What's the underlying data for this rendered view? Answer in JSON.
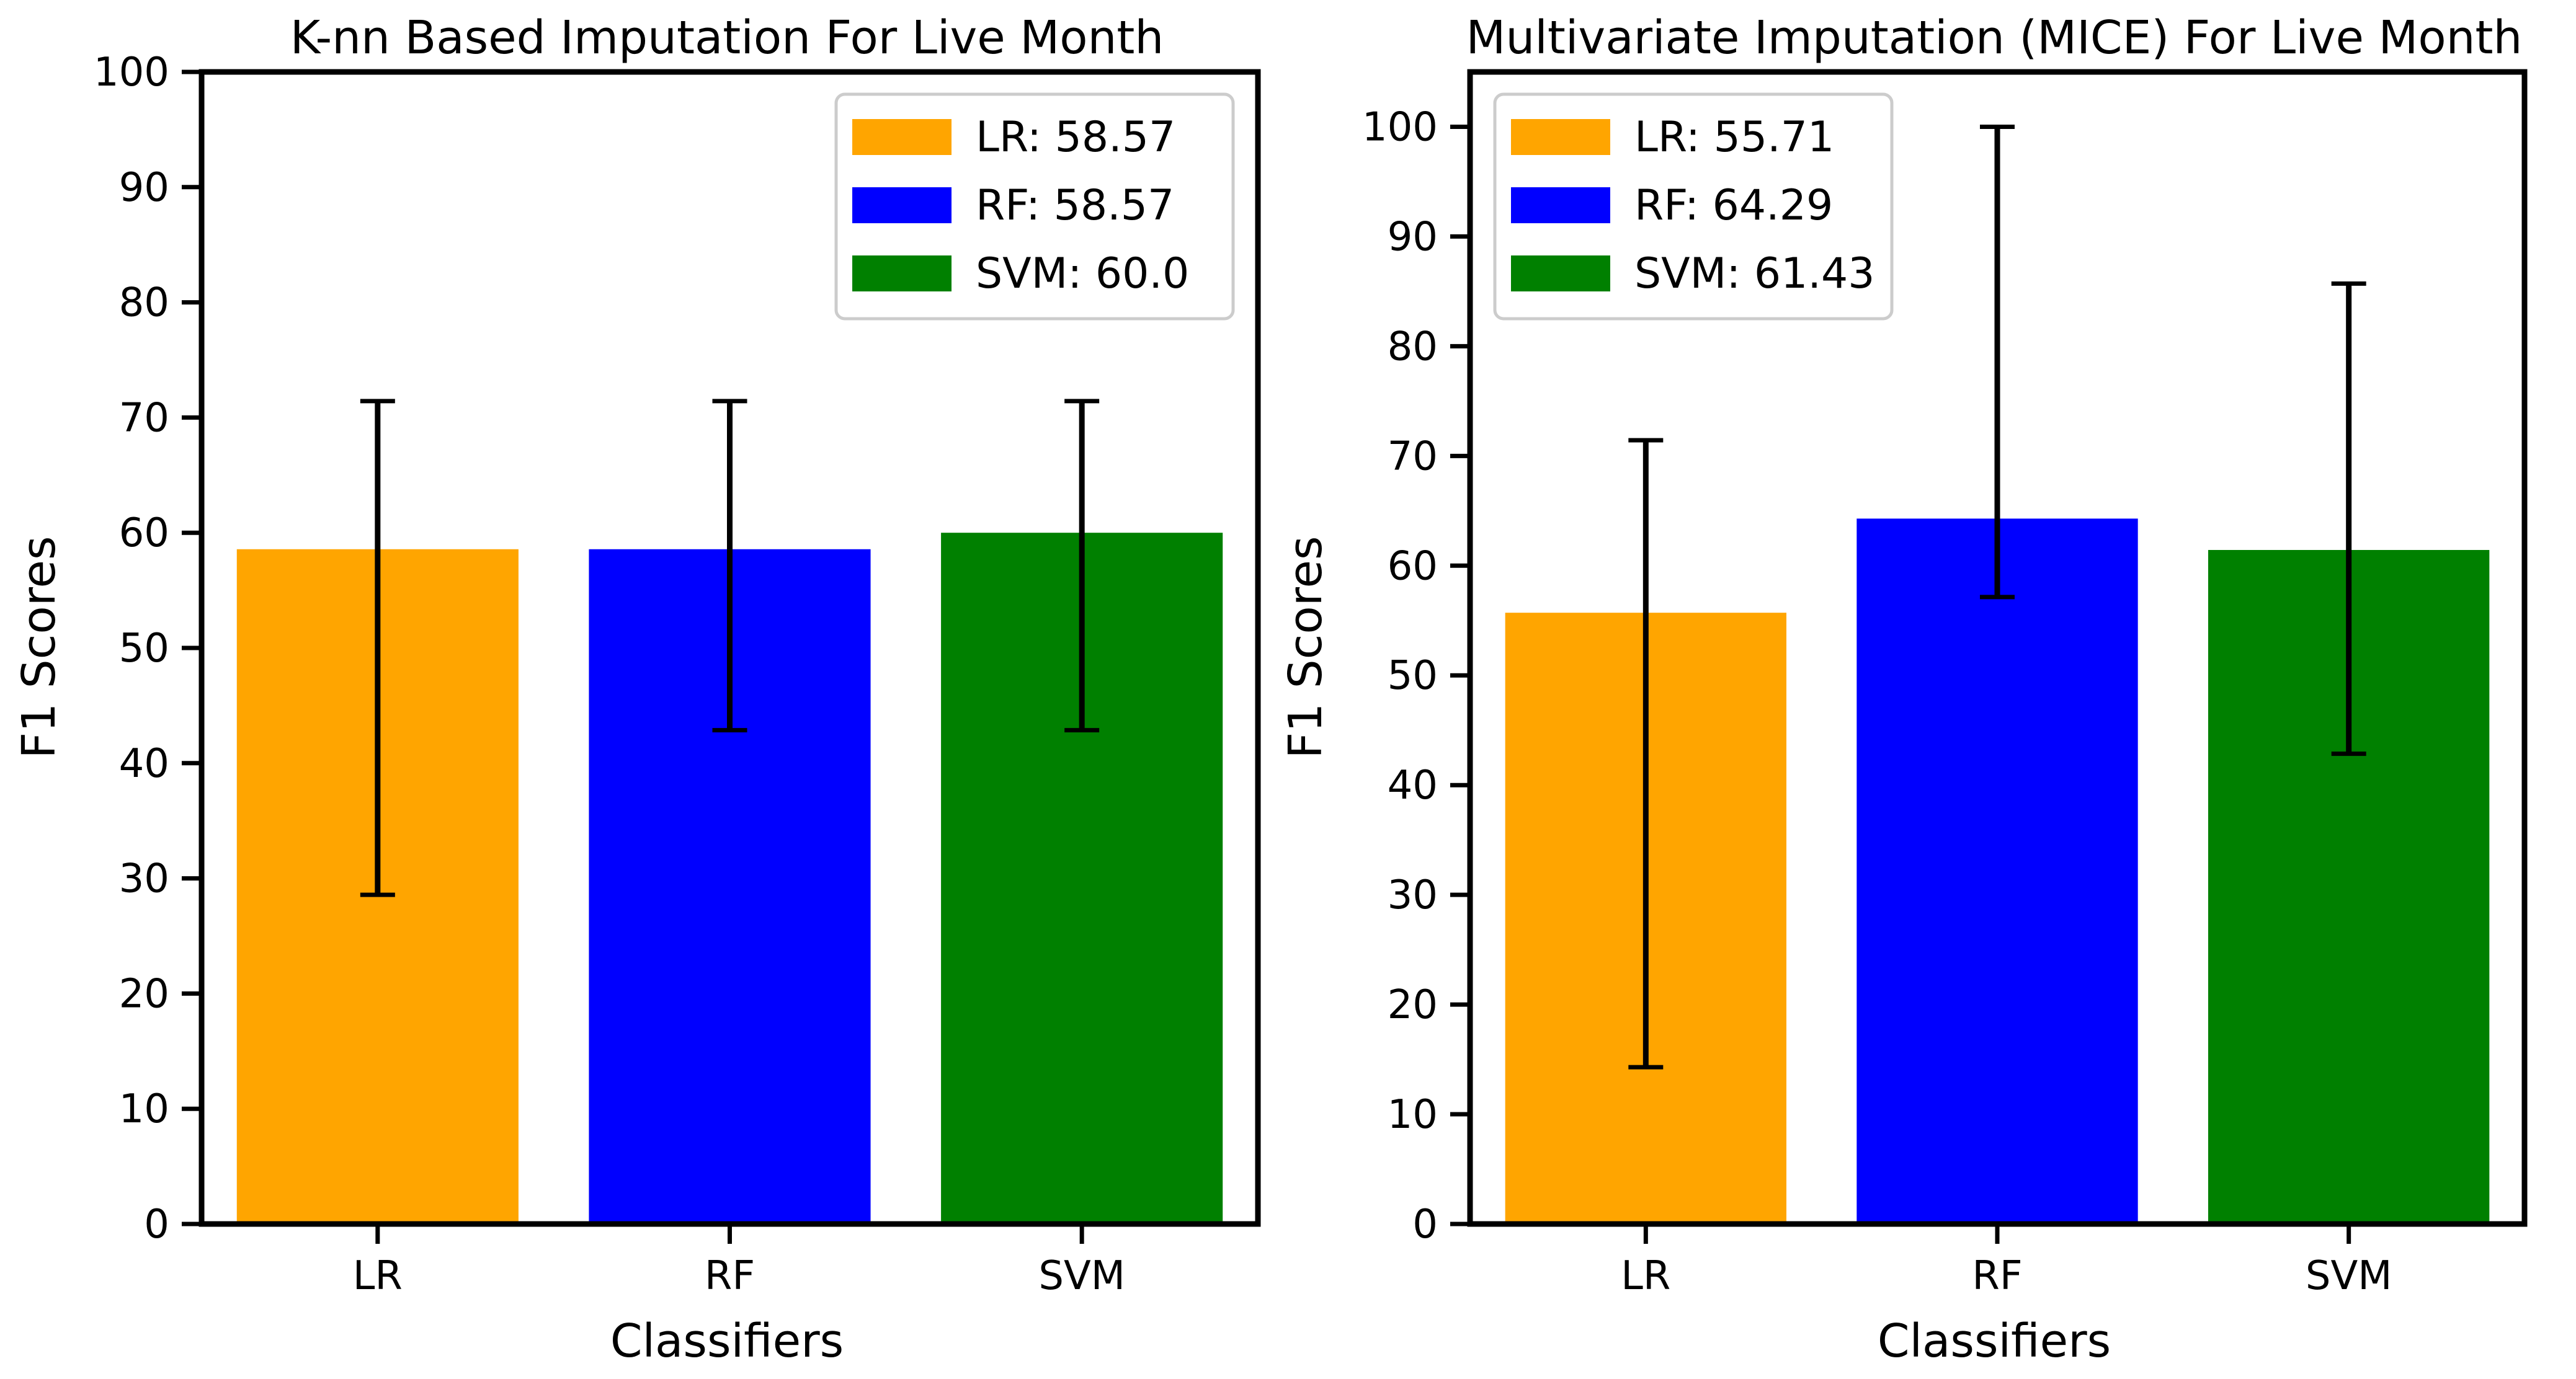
{
  "chart_data": [
    {
      "type": "bar",
      "title": "K-nn Based Imputation For Live Month",
      "xlabel": "Classifiers",
      "ylabel": "F1 Scores",
      "ylim": [
        0,
        100
      ],
      "yticks": [
        "0",
        "10",
        "20",
        "30",
        "40",
        "50",
        "60",
        "70",
        "80",
        "90",
        "100"
      ],
      "categories": [
        "LR",
        "RF",
        "SVM"
      ],
      "values": [
        58.57,
        58.57,
        60.0
      ],
      "error_low": [
        28.57,
        42.86,
        42.86
      ],
      "error_high": [
        71.43,
        71.43,
        71.43
      ],
      "colors": [
        "#ffa500",
        "#0000ff",
        "#008000"
      ],
      "legend_placement": "top-right",
      "legend": [
        "LR: 58.57",
        "RF: 58.57",
        "SVM: 60.0"
      ],
      "grid": false
    },
    {
      "type": "bar",
      "title": "Multivariate Imputation (MICE) For Live Month",
      "xlabel": "Classifiers",
      "ylabel": "F1 Scores",
      "ylim": [
        0,
        105
      ],
      "yticks": [
        "0",
        "10",
        "20",
        "30",
        "40",
        "50",
        "60",
        "70",
        "80",
        "90",
        "100"
      ],
      "categories": [
        "LR",
        "RF",
        "SVM"
      ],
      "values": [
        55.71,
        64.29,
        61.43
      ],
      "error_low": [
        14.29,
        57.14,
        42.86
      ],
      "error_high": [
        71.43,
        100.0,
        85.71
      ],
      "colors": [
        "#ffa500",
        "#0000ff",
        "#008000"
      ],
      "legend_placement": "top-left",
      "legend": [
        "LR: 55.71",
        "RF: 64.29",
        "SVM: 61.43"
      ],
      "grid": false
    }
  ]
}
